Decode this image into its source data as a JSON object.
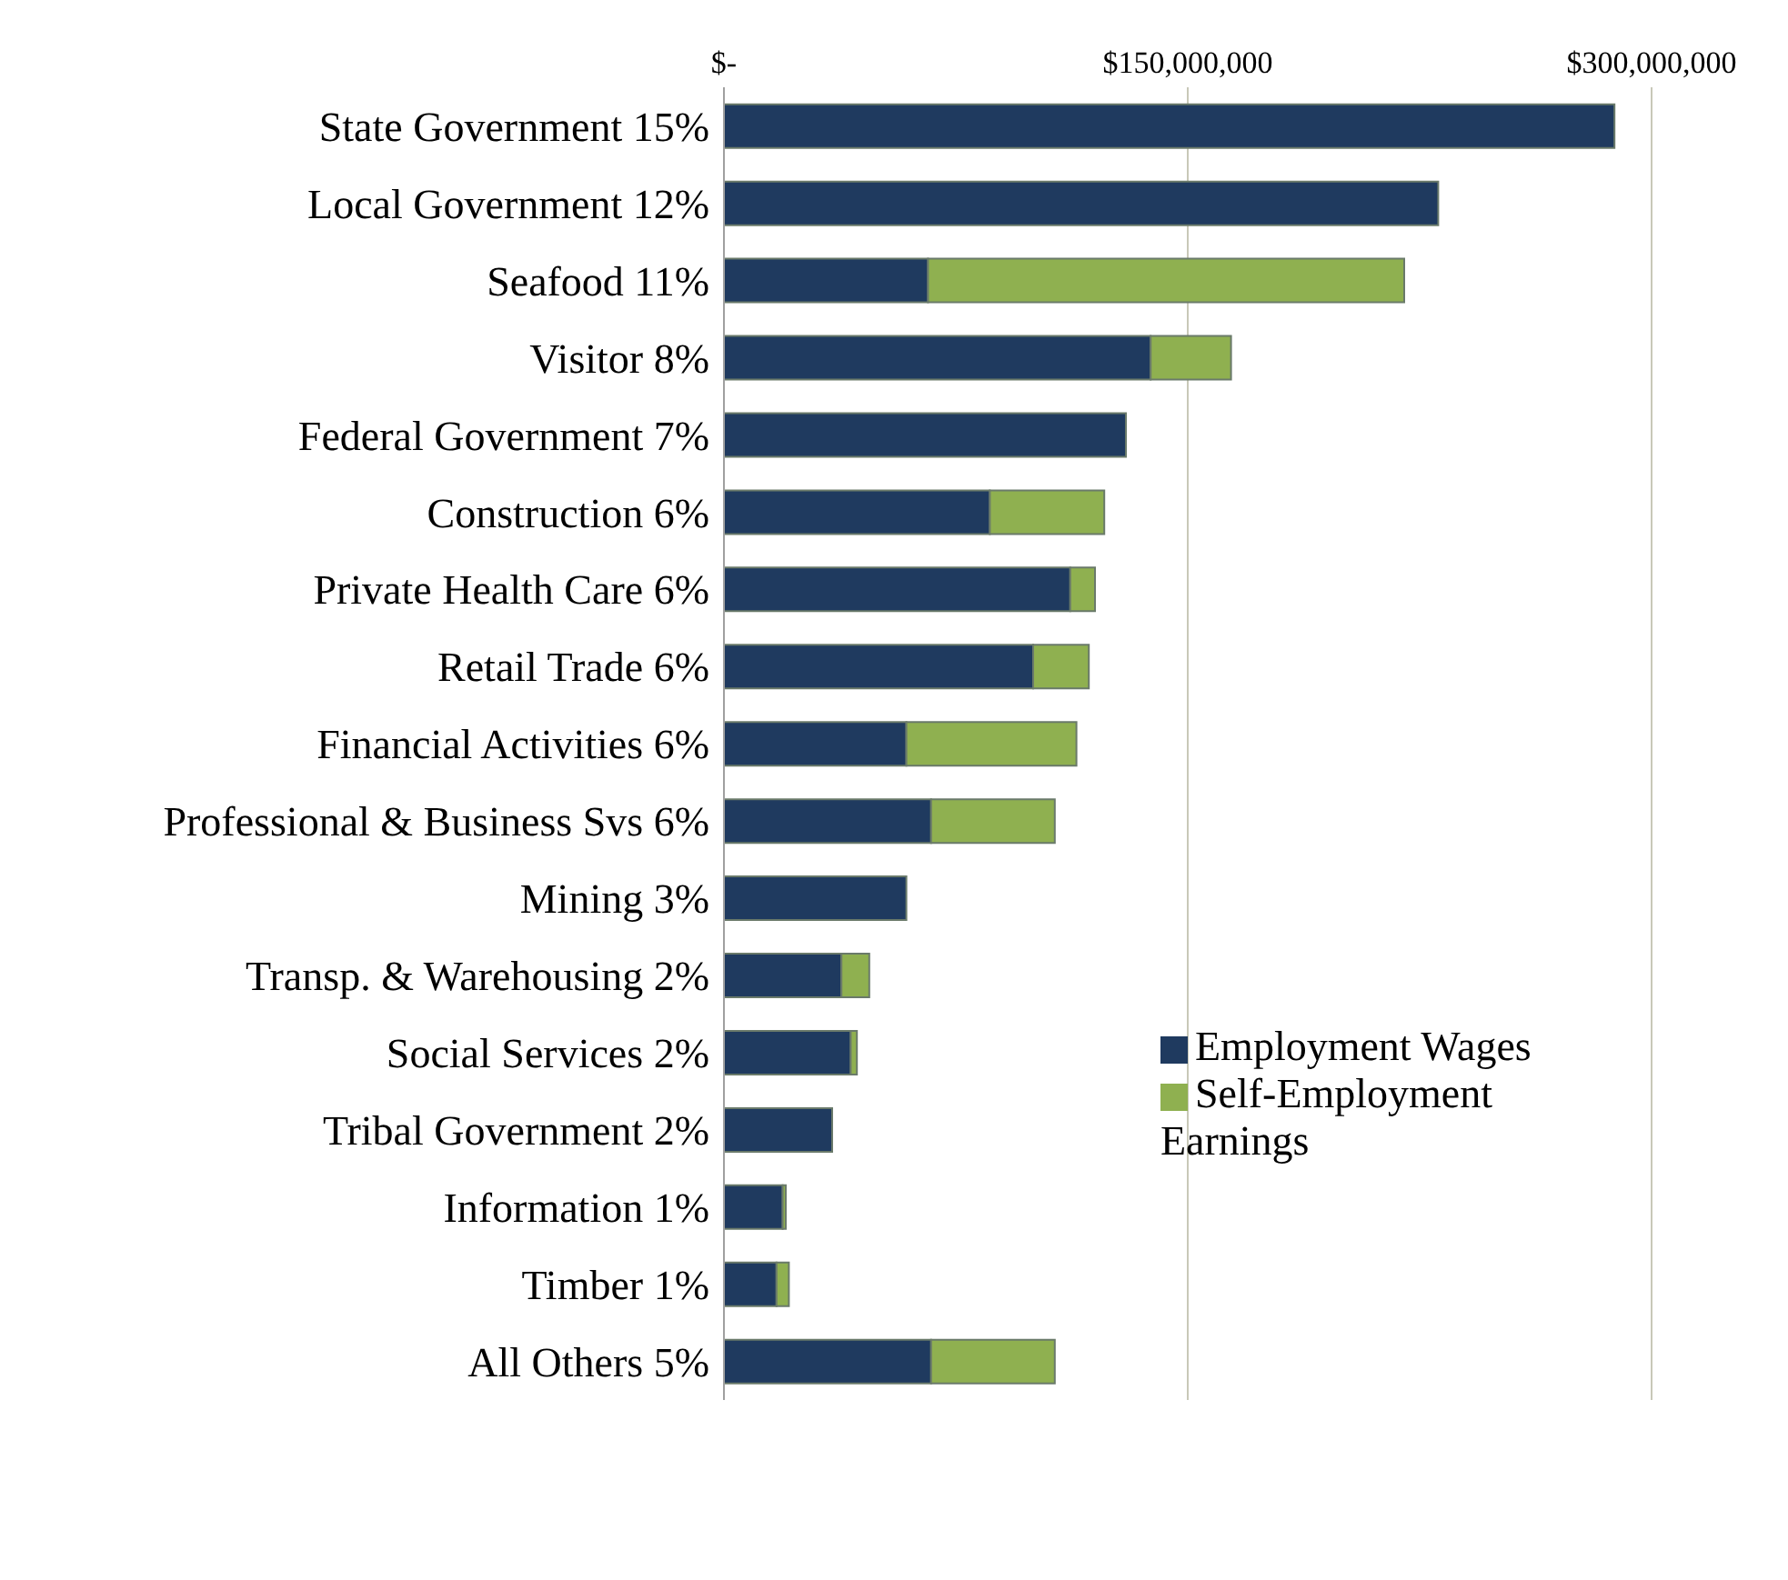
{
  "chart_data": {
    "type": "bar",
    "orientation": "horizontal",
    "stacked": true,
    "categories": [
      "State Government 15%",
      "Local Government 12%",
      "Seafood 11%",
      "Visitor 8%",
      "Federal Government 7%",
      "Construction 6%",
      "Private Health Care 6%",
      "Retail Trade 6%",
      "Financial Activities 6%",
      "Professional & Business Svs 6%",
      "Mining 3%",
      "Transp. & Warehousing 2%",
      "Social Services 2%",
      "Tribal Government 2%",
      "Information 1%",
      "Timber 1%",
      "All Others 5%"
    ],
    "series": [
      {
        "name": "Employment Wages",
        "color": "#1f3a5f",
        "values": [
          288000000,
          231000000,
          66000000,
          138000000,
          130000000,
          86000000,
          112000000,
          100000000,
          59000000,
          67000000,
          59000000,
          38000000,
          41000000,
          35000000,
          19000000,
          17000000,
          67000000
        ]
      },
      {
        "name": "Self-Employment Earnings",
        "color": "#8fb050",
        "values": [
          null,
          null,
          154000000,
          26000000,
          null,
          37000000,
          8000000,
          18000000,
          55000000,
          40000000,
          null,
          9000000,
          2000000,
          null,
          1000000,
          4000000,
          40000000
        ]
      }
    ],
    "xlim": [
      0,
      300000000
    ],
    "xticks": [
      {
        "value": 0,
        "label": "$-"
      },
      {
        "value": 150000000,
        "label": "$150,000,000"
      },
      {
        "value": 300000000,
        "label": "$300,000,000"
      }
    ],
    "grid": "x",
    "legend": "right"
  }
}
